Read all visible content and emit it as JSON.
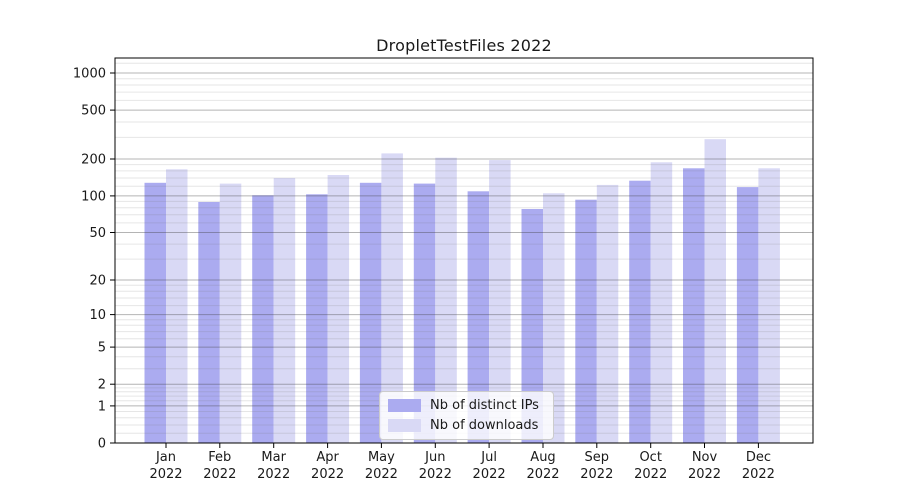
{
  "figure": {
    "title": "DropletTestFiles 2022"
  },
  "chart_data": {
    "type": "bar",
    "title": "DropletTestFiles 2022",
    "categories": [
      "Jan 2022",
      "Feb 2022",
      "Mar 2022",
      "Apr 2022",
      "May 2022",
      "Jun 2022",
      "Jul 2022",
      "Aug 2022",
      "Sep 2022",
      "Oct 2022",
      "Nov 2022",
      "Dec 2022"
    ],
    "series": [
      {
        "name": "Nb of distinct IPs",
        "color": "#ababf0",
        "values": [
          128,
          89,
          101,
          103,
          128,
          126,
          109,
          78,
          93,
          133,
          168,
          118
        ]
      },
      {
        "name": "Nb of downloads",
        "color": "#d9d9f5",
        "values": [
          165,
          126,
          140,
          148,
          222,
          205,
          196,
          105,
          123,
          188,
          290,
          168
        ]
      }
    ],
    "xlabel": "",
    "ylabel": "",
    "yscale": "symlog",
    "ylim": [
      0,
      1330
    ],
    "y_ticks": [
      0,
      1,
      2,
      5,
      10,
      20,
      50,
      100,
      200,
      500,
      1000
    ],
    "y_minor_ticks": [
      0.2,
      0.4,
      0.6,
      0.8,
      1.2,
      1.4,
      1.6,
      1.8,
      3,
      4,
      6,
      7,
      8,
      9,
      12,
      14,
      16,
      18,
      30,
      40,
      60,
      70,
      80,
      90,
      120,
      140,
      160,
      180,
      300,
      400,
      600,
      700,
      800,
      900,
      1200
    ],
    "grid": true,
    "legend_position": "lower center (inside axes)",
    "colors": {
      "axis": "#000000",
      "grid_major": "#444444",
      "grid_minor": "#777777",
      "text": "#1a1a1a",
      "background": "#ffffff"
    }
  }
}
